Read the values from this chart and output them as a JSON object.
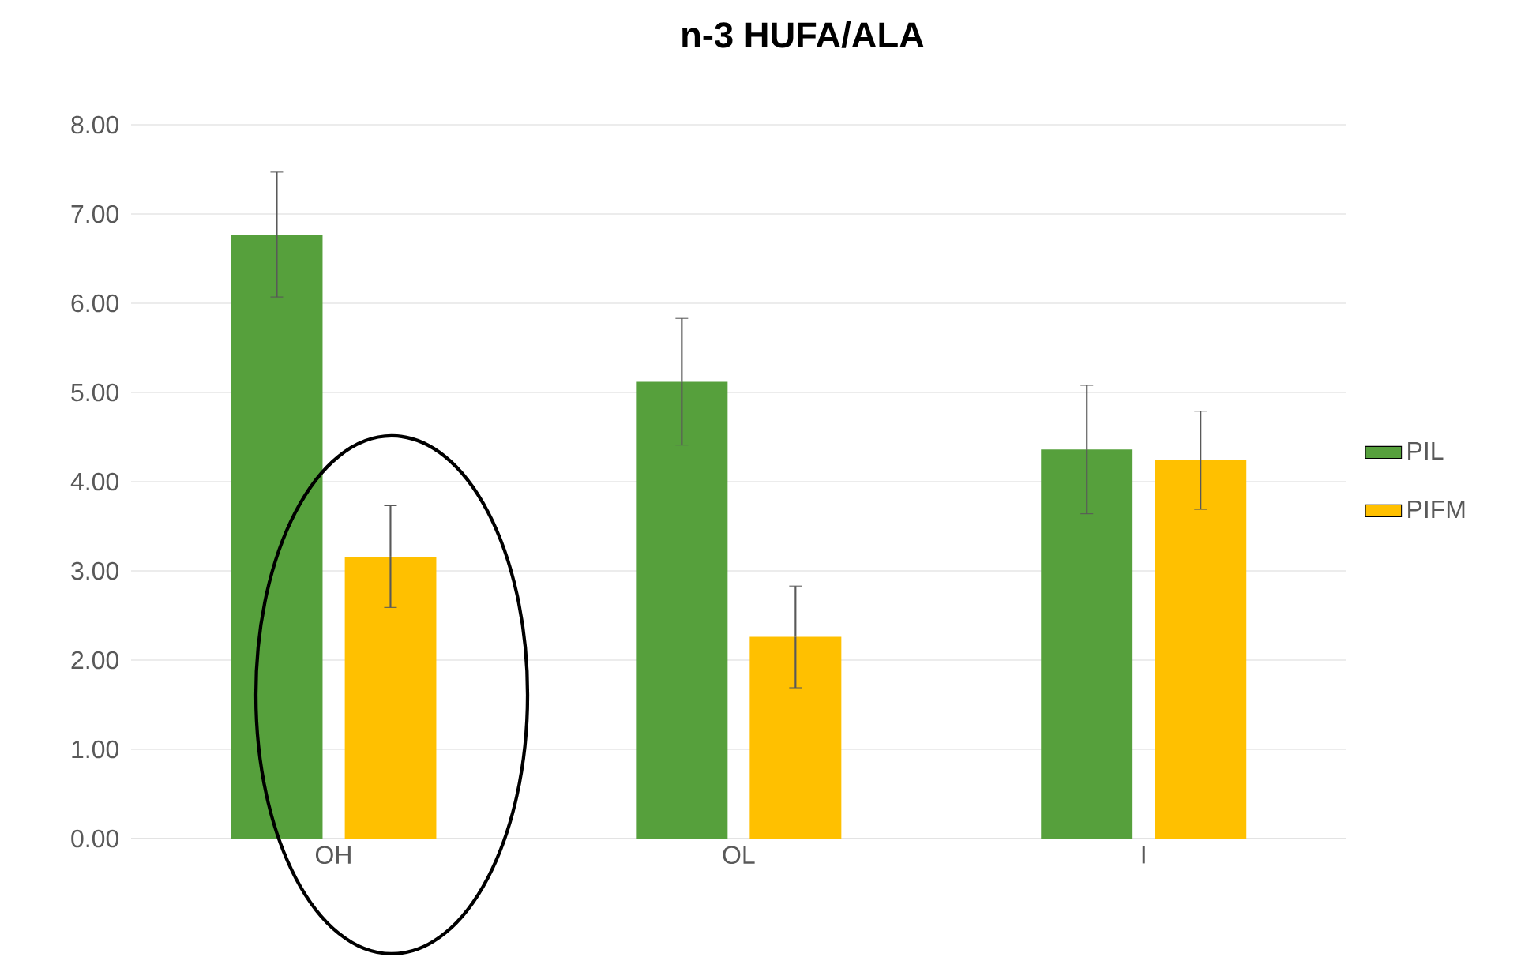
{
  "chart_data": {
    "type": "bar",
    "title": "n-3 HUFA/ALA",
    "categories": [
      "OH",
      "OL",
      "I"
    ],
    "series": [
      {
        "name": "PIL",
        "color": "#56a03c",
        "values": [
          6.77,
          5.12,
          4.36
        ],
        "errors": [
          0.7,
          0.71,
          0.72
        ]
      },
      {
        "name": "PIFM",
        "color": "#ffc000",
        "values": [
          3.16,
          2.26,
          4.24
        ],
        "errors": [
          0.57,
          0.57,
          0.55
        ]
      }
    ],
    "ylim": [
      0,
      8
    ],
    "yticks": [
      {
        "value": 0,
        "label": "0.00"
      },
      {
        "value": 1,
        "label": "1.00"
      },
      {
        "value": 2,
        "label": "2.00"
      },
      {
        "value": 3,
        "label": "3.00"
      },
      {
        "value": 4,
        "label": "4.00"
      },
      {
        "value": 5,
        "label": "5.00"
      },
      {
        "value": 6,
        "label": "6.00"
      },
      {
        "value": 7,
        "label": "7.00"
      },
      {
        "value": 8,
        "label": "8.00"
      }
    ],
    "grid": "y",
    "legend": "right"
  }
}
